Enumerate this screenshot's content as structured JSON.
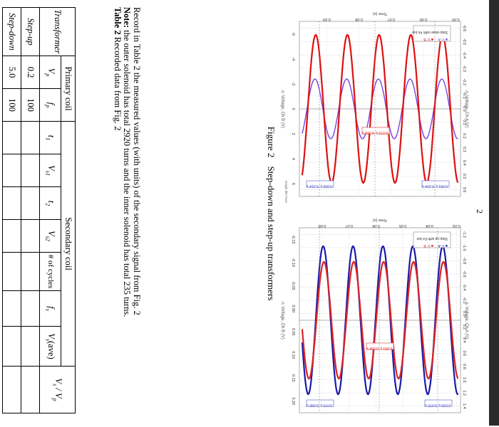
{
  "page_number": "2",
  "figure": {
    "label": "Figure 2",
    "caption": "Step-down and step-up transformers",
    "plots": [
      {
        "legend_title": "Step-down with Fe bar",
        "legend_items": [
          "V: A",
          "V: B"
        ],
        "x_axis_label": "Time (s)",
        "x_ticks": [
          "0.05",
          "0.06",
          "0.07",
          "0.08",
          "0.09"
        ],
        "left_axis_label": "Voltage, Ch A (V)",
        "left_ticks": [
          "-0.6",
          "-0.5",
          "-0.4",
          "-0.3",
          "-0.2",
          "-0.1",
          "0.0",
          "0.1",
          "0.2",
          "0.3",
          "0.4",
          "0.5",
          "0.6"
        ],
        "right_axis_label": "Voltage, Ch B (V)",
        "right_ticks": [
          "-6",
          "-4",
          "-2",
          "0",
          "2",
          "4",
          "6"
        ],
        "annotations": [
          "0.051 s, 0.224 V",
          "0.072 s, 4.969 V",
          "0.092 s, 0.214 V"
        ],
        "corner_label": "Graph title here",
        "colors": {
          "a": "#7744dd",
          "b": "#dd1111"
        }
      },
      {
        "legend_title": "Step-up with Fe bar",
        "legend_items": [
          "V: A",
          "V: B"
        ],
        "x_axis_label": "Time (s)",
        "x_ticks": [
          "0.03",
          "0.04",
          "0.05",
          "0.06",
          "0.07",
          "0.08"
        ],
        "left_axis_label": "Voltage, Ch A (V)",
        "left_ticks": [
          "-1.2",
          "-1.0",
          "-0.8",
          "-0.6",
          "-0.4",
          "-0.2",
          "0.0",
          "0.2",
          "0.4",
          "0.6",
          "0.8",
          "1.0",
          "1.2",
          "1.4"
        ],
        "right_axis_label": "Voltage, Ch B (V)",
        "right_ticks": [
          "-0.15",
          "-0.10",
          "-0.05",
          "0.00",
          "0.05",
          "0.10",
          "0.15",
          "0.20"
        ],
        "annotations": [
          "0.030 s, 0.072 V",
          "0.051 s, 0.096 V",
          "0.072 s, 0.085 V"
        ],
        "colors": {
          "a": "#1a1aaa",
          "b": "#dd2222"
        }
      }
    ]
  },
  "text": {
    "line1": "Record in Table 2 the measured values (with units) of the secondary signal from Fig. 2",
    "note_label": "Note:",
    "line2": " the outer solenoid has total 2920 turns and the inner solenoid has total 235 turns.",
    "table_title": "Table 2",
    "table_caption": " Recorded data from Fig. 2"
  },
  "table": {
    "header_transformer": "Transformer",
    "header_primary": "Primary coil",
    "header_secondary": "Secondary coil",
    "col_vp": "V",
    "col_vp_sub": "p",
    "col_fp": "f",
    "col_fp_sub": "p",
    "col_t1": "t",
    "col_t1_sub": "1",
    "col_vs1": "V",
    "col_vs1_sub": "s1",
    "col_t2": "t",
    "col_t2_sub": "2",
    "col_vs2": "V",
    "col_vs2_sub": "s2",
    "col_cycles": "# of cycles",
    "col_fs": "f",
    "col_fs_sub": "s",
    "col_vsave": "V",
    "col_vsave_sub": "s",
    "col_vsave_tail": "(ave)",
    "col_ratio": "V",
    "col_ratio_sub1": "s",
    "col_ratio_mid": " / V",
    "col_ratio_sub2": "p",
    "rows": [
      {
        "name": "Step-up",
        "vp": "0.2",
        "fp": "100"
      },
      {
        "name": "Step-down",
        "vp": "5.0",
        "fp": "100"
      }
    ]
  }
}
